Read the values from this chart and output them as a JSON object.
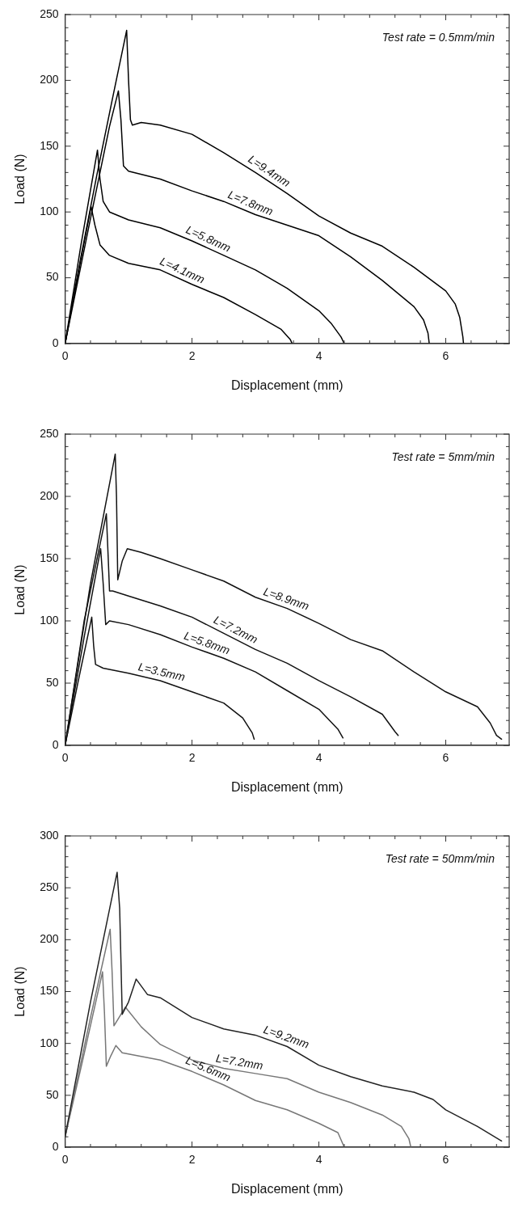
{
  "chart_data": [
    {
      "type": "line",
      "xlabel": "Displacement (mm)",
      "ylabel": "Load (N)",
      "xlim": [
        0,
        7
      ],
      "ylim": [
        0,
        250
      ],
      "xticks": [
        0,
        {
          "value": 0.4,
          "label": null
        },
        {
          "value": 0.8,
          "label": null
        },
        {
          "value": 1.2,
          "label": null
        },
        {
          "value": 1.6,
          "label": null
        },
        2,
        {
          "value": 2.4,
          "label": null
        },
        {
          "value": 2.8,
          "label": null
        },
        {
          "value": 3.2,
          "label": null
        },
        {
          "value": 3.6,
          "label": null
        },
        4,
        {
          "value": 4.4,
          "label": null
        },
        {
          "value": 4.8,
          "label": null
        },
        {
          "value": 5.2,
          "label": null
        },
        {
          "value": 5.6,
          "label": null
        },
        6,
        {
          "value": 6.4,
          "label": null
        },
        {
          "value": 6.8,
          "label": null
        }
      ],
      "yticks": [
        0,
        {
          "value": 10,
          "label": null
        },
        {
          "value": 20,
          "label": null
        },
        {
          "value": 30,
          "label": null
        },
        {
          "value": 40,
          "label": null
        },
        50,
        {
          "value": 60,
          "label": null
        },
        {
          "value": 70,
          "label": null
        },
        {
          "value": 80,
          "label": null
        },
        {
          "value": 90,
          "label": null
        },
        100,
        {
          "value": 110,
          "label": null
        },
        {
          "value": 120,
          "label": null
        },
        {
          "value": 130,
          "label": null
        },
        {
          "value": 140,
          "label": null
        },
        150,
        {
          "value": 160,
          "label": null
        },
        {
          "value": 170,
          "label": null
        },
        {
          "value": 180,
          "label": null
        },
        {
          "value": 190,
          "label": null
        },
        200,
        {
          "value": 210,
          "label": null
        },
        {
          "value": 220,
          "label": null
        },
        {
          "value": 230,
          "label": null
        },
        {
          "value": 240,
          "label": null
        },
        250
      ],
      "grid": false,
      "legend": false,
      "marker": "none",
      "line_style": "solid",
      "series": [
        {
          "name": "L=9.4mm",
          "color": "#000000",
          "x": [
            0,
            0.25,
            0.5,
            0.75,
            0.97,
            1.0,
            1.03,
            1.06,
            1.2,
            1.5,
            2,
            2.5,
            3,
            3.5,
            4,
            4.5,
            5,
            5.5,
            6,
            6.15,
            6.22,
            6.27,
            6.28
          ],
          "values": [
            0,
            66,
            128,
            187,
            238,
            200,
            170,
            166,
            168,
            166,
            159,
            145,
            130,
            114,
            97,
            84,
            74,
            58,
            40,
            30,
            20,
            5,
            0
          ]
        },
        {
          "name": "L=7.8mm",
          "color": "#000000",
          "x": [
            0,
            0.4,
            0.7,
            0.84,
            0.88,
            0.92,
            1,
            1.5,
            2,
            2.5,
            3,
            3.5,
            4,
            4.5,
            5,
            5.5,
            5.65,
            5.72,
            5.74
          ],
          "values": [
            0,
            95,
            165,
            192,
            170,
            135,
            131,
            125,
            116,
            108,
            98,
            90,
            82,
            66,
            48,
            28,
            18,
            8,
            0
          ]
        },
        {
          "name": "L=5.8mm",
          "color": "#000000",
          "x": [
            0,
            0.25,
            0.51,
            0.55,
            0.6,
            0.7,
            1,
            1.5,
            2,
            2.5,
            3,
            3.5,
            4,
            4.2,
            4.35,
            4.4
          ],
          "values": [
            0,
            75,
            147,
            125,
            108,
            100,
            94,
            88,
            78,
            67,
            56,
            42,
            25,
            15,
            5,
            0
          ]
        },
        {
          "name": "L=4.1mm",
          "color": "#000000",
          "x": [
            0,
            0.2,
            0.41,
            0.47,
            0.55,
            0.7,
            1,
            1.5,
            2,
            2.5,
            3,
            3.4,
            3.55,
            3.58
          ],
          "values": [
            0,
            52,
            104,
            90,
            75,
            67,
            61,
            56,
            45,
            35,
            22,
            11,
            3,
            0
          ]
        }
      ],
      "annotations": [
        "Test rate = 0.5mm/min"
      ]
    },
    {
      "type": "line",
      "xlabel": "Displacement (mm)",
      "ylabel": "Load (N)",
      "xlim": [
        0,
        7
      ],
      "ylim": [
        0,
        250
      ],
      "xticks": [
        0,
        {
          "value": 0.4,
          "label": null
        },
        {
          "value": 0.8,
          "label": null
        },
        {
          "value": 1.2,
          "label": null
        },
        {
          "value": 1.6,
          "label": null
        },
        2,
        {
          "value": 2.4,
          "label": null
        },
        {
          "value": 2.8,
          "label": null
        },
        {
          "value": 3.2,
          "label": null
        },
        {
          "value": 3.6,
          "label": null
        },
        4,
        {
          "value": 4.4,
          "label": null
        },
        {
          "value": 4.8,
          "label": null
        },
        {
          "value": 5.2,
          "label": null
        },
        {
          "value": 5.6,
          "label": null
        },
        6,
        {
          "value": 6.4,
          "label": null
        },
        {
          "value": 6.8,
          "label": null
        }
      ],
      "yticks": [
        0,
        {
          "value": 10,
          "label": null
        },
        {
          "value": 20,
          "label": null
        },
        {
          "value": 30,
          "label": null
        },
        {
          "value": 40,
          "label": null
        },
        50,
        {
          "value": 60,
          "label": null
        },
        {
          "value": 70,
          "label": null
        },
        {
          "value": 80,
          "label": null
        },
        {
          "value": 90,
          "label": null
        },
        100,
        {
          "value": 110,
          "label": null
        },
        {
          "value": 120,
          "label": null
        },
        {
          "value": 130,
          "label": null
        },
        {
          "value": 140,
          "label": null
        },
        150,
        {
          "value": 160,
          "label": null
        },
        {
          "value": 170,
          "label": null
        },
        {
          "value": 180,
          "label": null
        },
        {
          "value": 190,
          "label": null
        },
        200,
        {
          "value": 210,
          "label": null
        },
        {
          "value": 220,
          "label": null
        },
        {
          "value": 230,
          "label": null
        },
        {
          "value": 240,
          "label": null
        },
        250
      ],
      "grid": false,
      "legend": false,
      "marker": "none",
      "line_style": "solid",
      "series": [
        {
          "name": "L=8.9mm",
          "color": "#111111",
          "x": [
            0,
            0.4,
            0.79,
            0.81,
            0.83,
            0.9,
            0.98,
            1.2,
            1.5,
            2,
            2.5,
            3,
            3.5,
            4,
            4.5,
            5,
            5.5,
            6,
            6.5,
            6.7,
            6.8,
            6.88
          ],
          "values": [
            0,
            130,
            234,
            200,
            133,
            148,
            158,
            155,
            150,
            141,
            132,
            119,
            110,
            98,
            85,
            76,
            59,
            43,
            31,
            18,
            8,
            5
          ]
        },
        {
          "name": "L=7.2mm",
          "color": "#111111",
          "x": [
            0,
            0.3,
            0.65,
            0.68,
            0.7,
            0.75,
            1,
            1.5,
            2,
            2.5,
            3,
            3.5,
            4,
            4.5,
            5,
            5.2,
            5.25
          ],
          "values": [
            0,
            100,
            186,
            150,
            124,
            124,
            120,
            112,
            103,
            90,
            77,
            66,
            52,
            39,
            25,
            11,
            8
          ]
        },
        {
          "name": "L=5.8mm",
          "color": "#111111",
          "x": [
            0,
            0.3,
            0.56,
            0.6,
            0.64,
            0.7,
            1,
            1.5,
            2,
            2.5,
            3,
            3.5,
            4,
            4.3,
            4.38
          ],
          "values": [
            0,
            87,
            158,
            130,
            97,
            100,
            97,
            89,
            79,
            70,
            59,
            44,
            29,
            13,
            6
          ]
        },
        {
          "name": "L=3.5mm",
          "color": "#111111",
          "x": [
            0,
            0.2,
            0.42,
            0.45,
            0.48,
            0.6,
            1,
            1.5,
            2,
            2.5,
            2.8,
            2.95,
            2.98
          ],
          "values": [
            0,
            50,
            103,
            80,
            65,
            62,
            58,
            52,
            43,
            34,
            22,
            10,
            5
          ]
        }
      ],
      "annotations": [
        "Test rate = 5mm/min"
      ]
    },
    {
      "type": "line",
      "xlabel": "Displacement (mm)",
      "ylabel": "Load (N)",
      "xlim": [
        0,
        7
      ],
      "ylim": [
        0,
        300
      ],
      "xticks": [
        0,
        {
          "value": 0.4,
          "label": null
        },
        {
          "value": 0.8,
          "label": null
        },
        {
          "value": 1.2,
          "label": null
        },
        {
          "value": 1.6,
          "label": null
        },
        2,
        {
          "value": 2.4,
          "label": null
        },
        {
          "value": 2.8,
          "label": null
        },
        {
          "value": 3.2,
          "label": null
        },
        {
          "value": 3.6,
          "label": null
        },
        4,
        {
          "value": 4.4,
          "label": null
        },
        {
          "value": 4.8,
          "label": null
        },
        {
          "value": 5.2,
          "label": null
        },
        {
          "value": 5.6,
          "label": null
        },
        6,
        {
          "value": 6.4,
          "label": null
        },
        {
          "value": 6.8,
          "label": null
        }
      ],
      "yticks": [
        0,
        {
          "value": 10,
          "label": null
        },
        {
          "value": 20,
          "label": null
        },
        {
          "value": 30,
          "label": null
        },
        {
          "value": 40,
          "label": null
        },
        50,
        {
          "value": 60,
          "label": null
        },
        {
          "value": 70,
          "label": null
        },
        {
          "value": 80,
          "label": null
        },
        {
          "value": 90,
          "label": null
        },
        100,
        {
          "value": 110,
          "label": null
        },
        {
          "value": 120,
          "label": null
        },
        {
          "value": 130,
          "label": null
        },
        {
          "value": 140,
          "label": null
        },
        150,
        {
          "value": 160,
          "label": null
        },
        {
          "value": 170,
          "label": null
        },
        {
          "value": 180,
          "label": null
        },
        {
          "value": 190,
          "label": null
        },
        200,
        {
          "value": 210,
          "label": null
        },
        {
          "value": 220,
          "label": null
        },
        {
          "value": 230,
          "label": null
        },
        {
          "value": 240,
          "label": null
        },
        250,
        {
          "value": 260,
          "label": null
        },
        {
          "value": 270,
          "label": null
        },
        {
          "value": 280,
          "label": null
        },
        {
          "value": 290,
          "label": null
        },
        300
      ],
      "grid": false,
      "legend": false,
      "marker": "none",
      "line_style": "solid",
      "series": [
        {
          "name": "L=9.2mm",
          "color": "#222222",
          "x": [
            0,
            0.4,
            0.82,
            0.86,
            0.9,
            1.0,
            1.12,
            1.3,
            1.5,
            2,
            2.5,
            3,
            3.5,
            4,
            4.5,
            5,
            5.5,
            5.8,
            6,
            6.5,
            6.88
          ],
          "values": [
            10,
            140,
            265,
            230,
            128,
            140,
            162,
            147,
            144,
            125,
            114,
            108,
            97,
            79,
            68,
            59,
            53,
            46,
            36,
            20,
            6
          ]
        },
        {
          "name": "L=7.2mm",
          "color": "#777777",
          "x": [
            0,
            0.4,
            0.71,
            0.74,
            0.77,
            0.85,
            0.95,
            1.2,
            1.5,
            2,
            2.5,
            3,
            3.5,
            4,
            4.5,
            5,
            5.3,
            5.42,
            5.45
          ],
          "values": [
            10,
            125,
            210,
            170,
            117,
            125,
            135,
            116,
            99,
            84,
            76,
            71,
            66,
            53,
            43,
            31,
            20,
            8,
            0
          ]
        },
        {
          "name": "L=5.6mm",
          "color": "#777777",
          "x": [
            0,
            0.3,
            0.59,
            0.62,
            0.65,
            0.72,
            0.8,
            0.9,
            1.5,
            2,
            2.5,
            3,
            3.5,
            4,
            4.3,
            4.4
          ],
          "values": [
            10,
            90,
            169,
            130,
            78,
            88,
            98,
            91,
            84,
            73,
            60,
            45,
            36,
            23,
            14,
            0
          ]
        }
      ],
      "annotations": [
        "Test rate = 50mm/min"
      ]
    }
  ]
}
